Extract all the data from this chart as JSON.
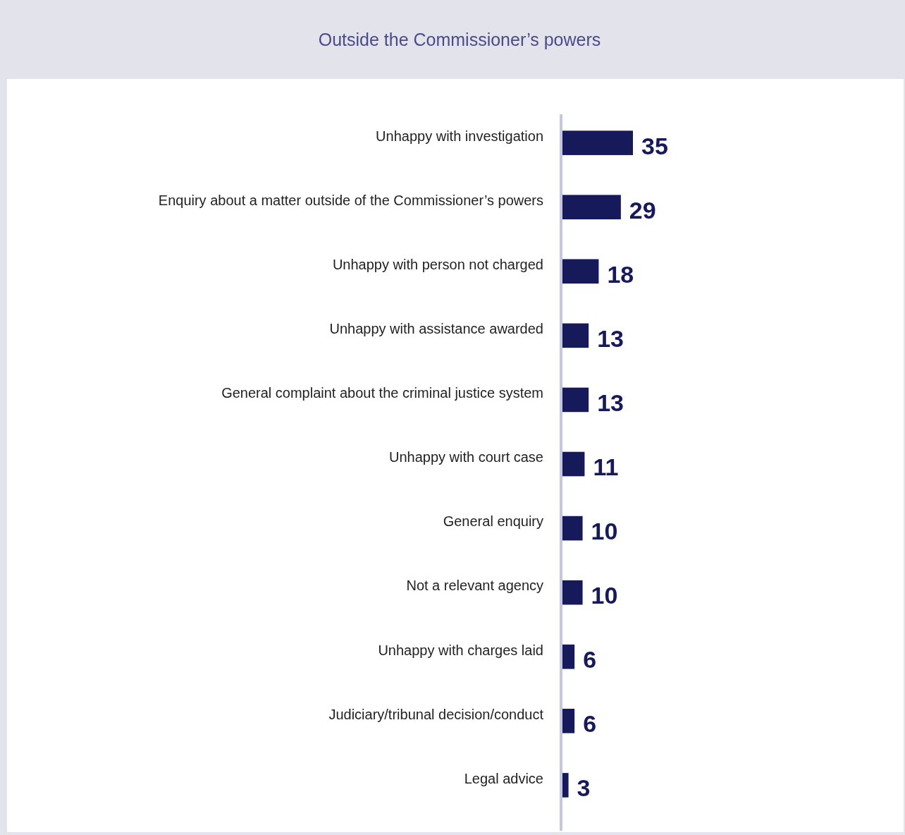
{
  "chart_data": {
    "type": "bar",
    "orientation": "horizontal",
    "title": "Outside the Commissioner’s powers",
    "categories": [
      "Unhappy with investigation",
      "Enquiry about a matter outside of the Commissioner’s powers",
      "Unhappy with person not charged",
      "Unhappy with assistance awarded",
      "General complaint about the criminal justice system",
      "Unhappy with court case",
      "General enquiry",
      "Not a relevant agency",
      "Unhappy with charges laid",
      "Judiciary/tribunal decision/conduct",
      "Legal advice"
    ],
    "values": [
      35,
      29,
      18,
      13,
      13,
      11,
      10,
      10,
      6,
      6,
      3
    ],
    "color": "#161a5a",
    "data_labels": true
  }
}
